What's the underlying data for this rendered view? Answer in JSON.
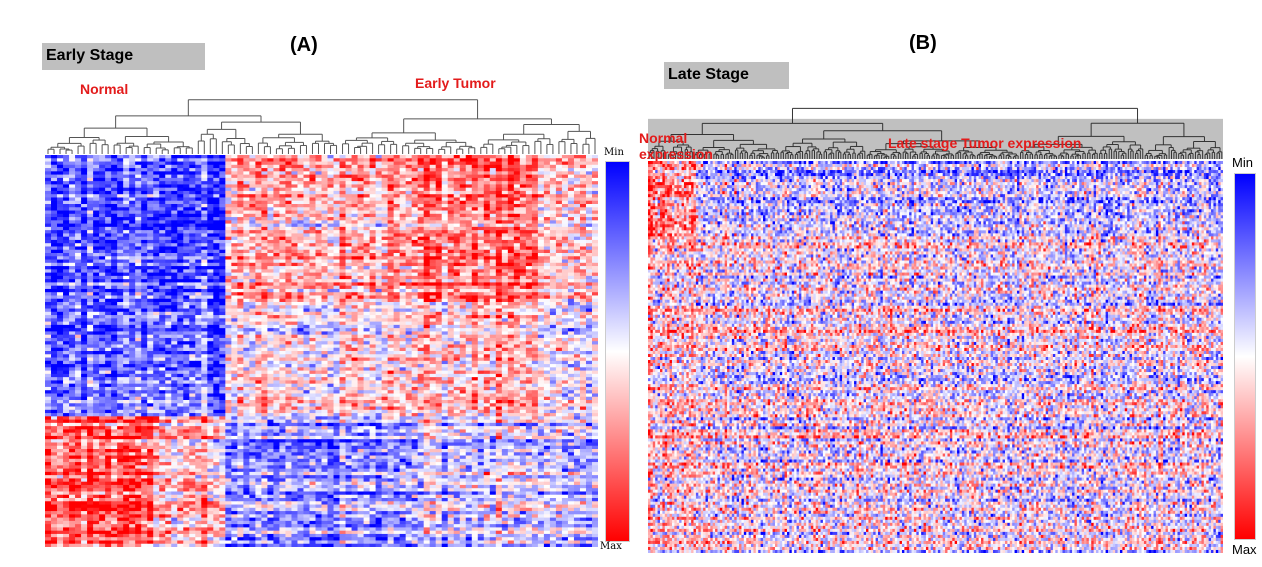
{
  "chart_data": [
    {
      "type": "heatmap",
      "panel_label": "(A)",
      "stage_label": "Early Stage",
      "group_labels": [
        "Normal",
        "Early Tumor"
      ],
      "colorbar": {
        "min_label": "Min",
        "max_label": "Max",
        "min_color": "#0000ff",
        "mid_color": "#ffffff",
        "max_color": "#ff0000"
      },
      "column_clusters": [
        {
          "group": "Normal",
          "n": 18
        },
        {
          "group": "Normal",
          "n": 12
        },
        {
          "group": "Early Tumor",
          "n": 32
        },
        {
          "group": "Early Tumor",
          "n": 20
        },
        {
          "group": "Early Tumor",
          "n": 10
        }
      ],
      "row_clusters": [
        {
          "n": 45
        },
        {
          "n": 35
        },
        {
          "n": 40
        }
      ],
      "cluster_means": [
        [
          -0.6,
          -0.8,
          0.3,
          0.5,
          0.1
        ],
        [
          -0.5,
          -0.6,
          0.1,
          0.2,
          -0.1
        ],
        [
          0.7,
          0.2,
          -0.4,
          -0.2,
          -0.3
        ]
      ],
      "value_range": [
        -1,
        1
      ],
      "dendrogram": "top"
    },
    {
      "type": "heatmap",
      "panel_label": "(B)",
      "stage_label": "Late Stage",
      "group_labels": [
        "Normal\nexpression",
        "Late stage Tumor expression"
      ],
      "colorbar": {
        "min_label": "Min",
        "max_label": "Max",
        "min_color": "#0000ff",
        "mid_color": "#ffffff",
        "max_color": "#ff0000"
      },
      "column_clusters": [
        {
          "group": "Normal",
          "n": 8
        },
        {
          "group": "Normal",
          "n": 12
        },
        {
          "group": "Late Tumor",
          "n": 220
        }
      ],
      "row_clusters": [
        {
          "n": 25
        },
        {
          "n": 105
        }
      ],
      "cluster_means": [
        [
          0.6,
          0.5,
          -0.2
        ],
        [
          0.15,
          0.25,
          0.0
        ]
      ],
      "value_range": [
        -1,
        1
      ],
      "dendrogram": "top"
    }
  ]
}
